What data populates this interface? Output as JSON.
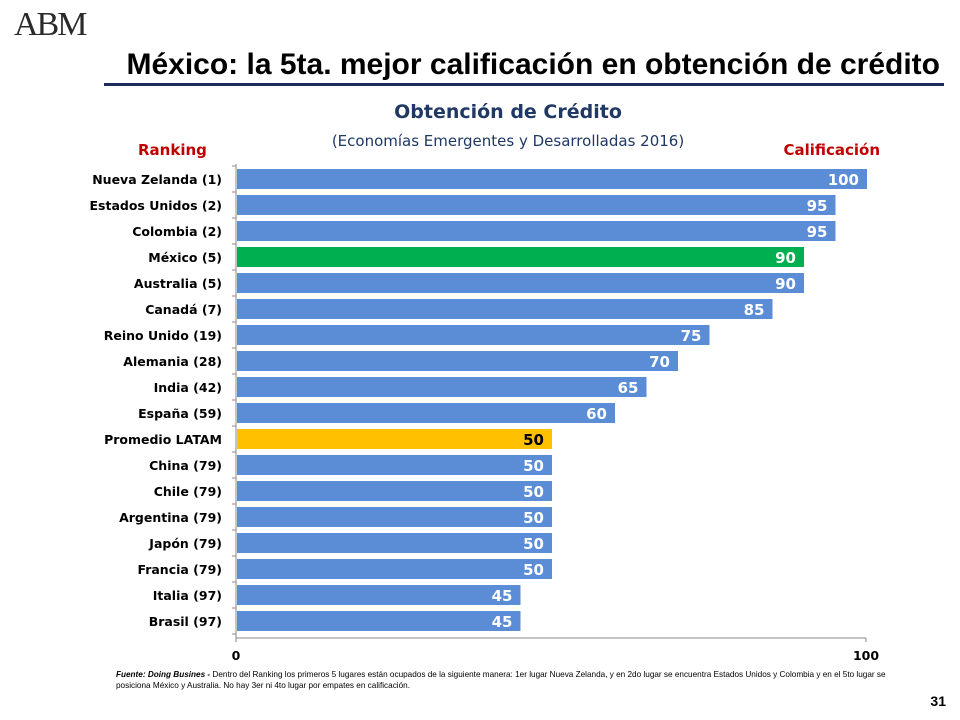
{
  "slide": {
    "title": "México: la 5ta. mejor calificación en obtención de crédito",
    "logo_text": "ABM",
    "page_number": "31"
  },
  "chart_header": {
    "title": "Obtención de Crédito",
    "subtitle": "(Economías Emergentes y Desarrolladas 2016)",
    "left_heading": "Ranking",
    "right_heading": "Calificación"
  },
  "chart_data": {
    "type": "bar",
    "orientation": "horizontal",
    "title": "Obtención de Crédito",
    "subtitle": "(Economías Emergentes y Desarrolladas 2016)",
    "categories": [
      "Nueva Zelanda (1)",
      "Estados Unidos (2)",
      "Colombia (2)",
      "México (5)",
      "Australia (5)",
      "Canadá (7)",
      "Reino Unido (19)",
      "Alemania (28)",
      "India (42)",
      "España (59)",
      "Promedio LATAM",
      "China (79)",
      "Chile (79)",
      "Argentina (79)",
      "Japón (79)",
      "Francia (79)",
      "Italia (97)",
      "Brasil (97)"
    ],
    "values": [
      100,
      95,
      95,
      90,
      90,
      85,
      75,
      70,
      65,
      60,
      50,
      50,
      50,
      50,
      50,
      50,
      45,
      45
    ],
    "colors": [
      "#5b8dd6",
      "#5b8dd6",
      "#5b8dd6",
      "#00b050",
      "#5b8dd6",
      "#5b8dd6",
      "#5b8dd6",
      "#5b8dd6",
      "#5b8dd6",
      "#5b8dd6",
      "#ffc000",
      "#5b8dd6",
      "#5b8dd6",
      "#5b8dd6",
      "#5b8dd6",
      "#5b8dd6",
      "#5b8dd6",
      "#5b8dd6"
    ],
    "xlim": [
      0,
      100
    ],
    "xticks": [
      "0",
      "100"
    ],
    "grid": false
  },
  "footnote": {
    "source_label": "Fuente: Doing Busines -",
    "text": " Dentro del Ranking los primeros 5 lugares están ocupados de la siguiente manera: 1er lugar Nueva Zelanda, y en 2do lugar se encuentra Estados Unidos y Colombia y en el 5to lugar se posiciona México y Australia. No hay 3er ni 4to lugar por empates en calificación."
  }
}
